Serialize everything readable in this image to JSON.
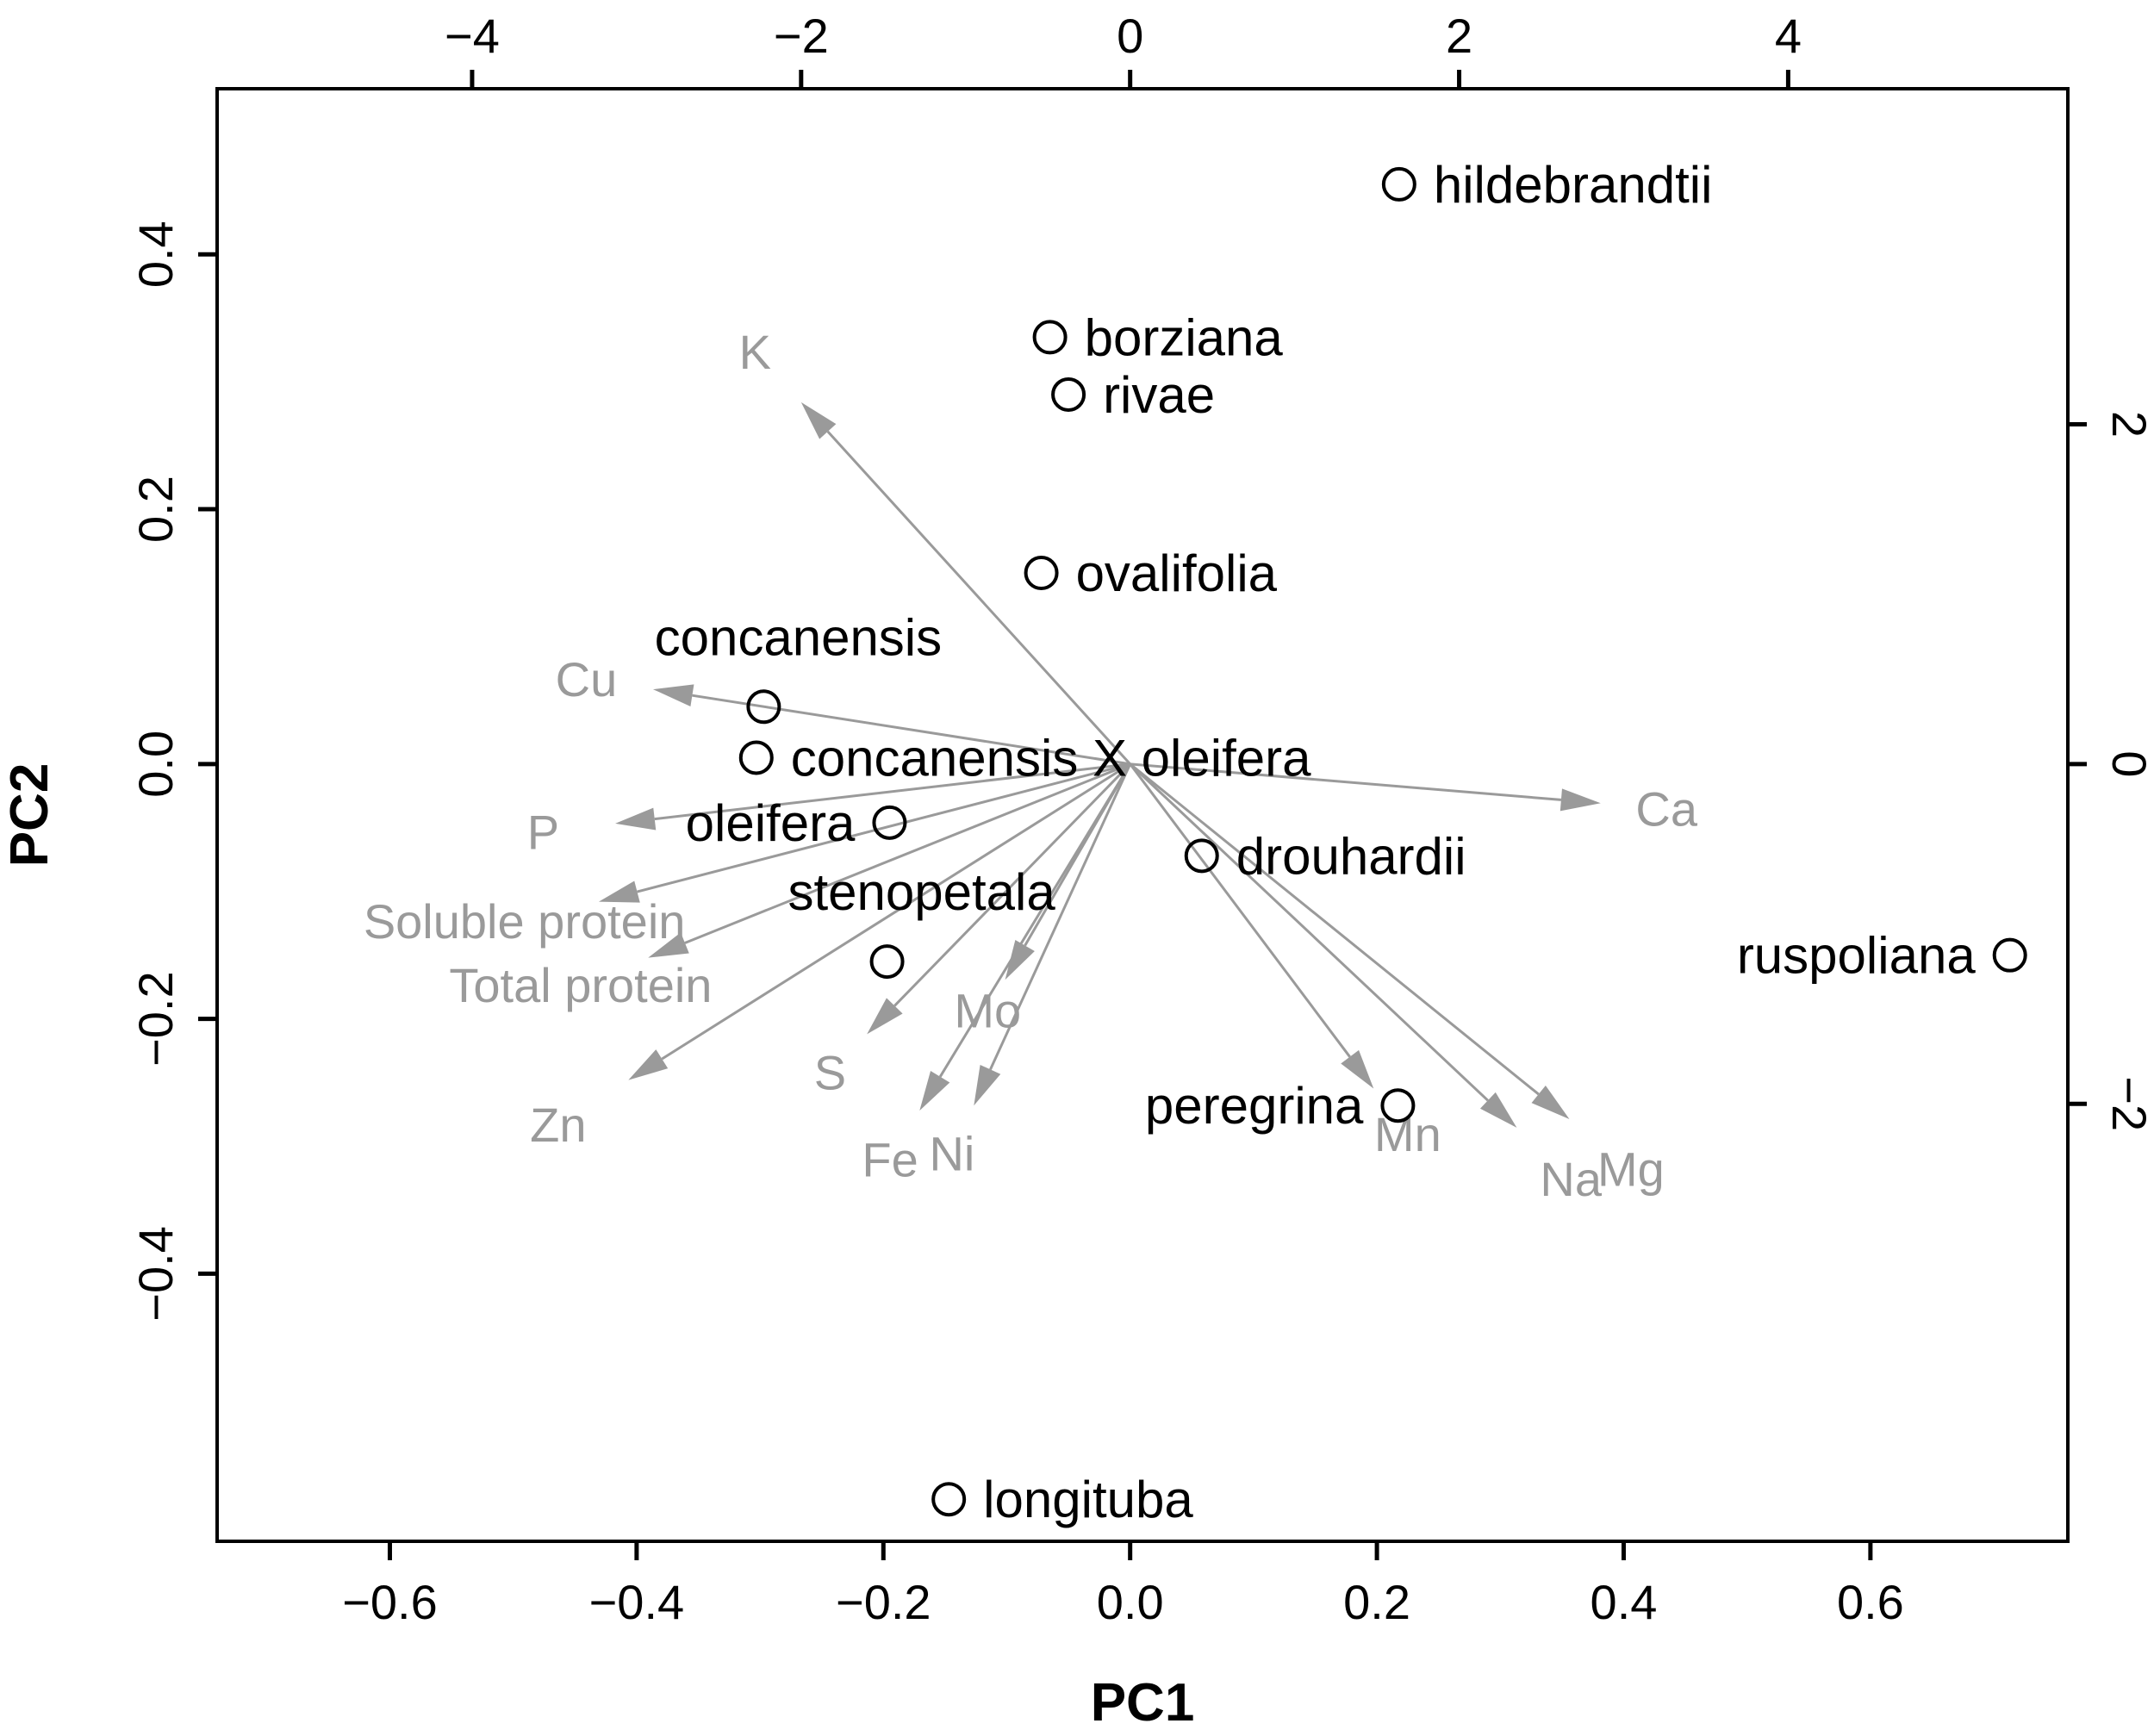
{
  "chart_data": {
    "type": "scatter",
    "subtype": "biplot",
    "xlabel": "PC1",
    "ylabel": "PC2",
    "xlim": [
      -0.74,
      0.76
    ],
    "ylim": [
      -0.61,
      0.53
    ],
    "x_ticks": [
      "−0.6",
      "−0.4",
      "−0.2",
      "0.0",
      "0.2",
      "0.4",
      "0.6"
    ],
    "x_tick_values": [
      -0.6,
      -0.4,
      -0.2,
      0.0,
      0.2,
      0.4,
      0.6
    ],
    "y_ticks": [
      "−0.4",
      "−0.2",
      "0.0",
      "0.2",
      "0.4"
    ],
    "y_tick_values": [
      -0.4,
      -0.2,
      0.0,
      0.2,
      0.4
    ],
    "top_ticks": [
      "−4",
      "−2",
      "0",
      "2",
      "4"
    ],
    "top_tick_values": [
      -4,
      -2,
      0,
      2,
      4
    ],
    "right_ticks": [
      "−2",
      "0",
      "2"
    ],
    "right_tick_values": [
      -2,
      0,
      2
    ],
    "loading_scale": 7.5,
    "observations": [
      {
        "label": "hildebrandtii",
        "x": 0.218,
        "y": 0.455
      },
      {
        "label": "borziana",
        "x": -0.065,
        "y": 0.335
      },
      {
        "label": "rivae",
        "x": -0.05,
        "y": 0.29
      },
      {
        "label": "ovalifolia",
        "x": -0.072,
        "y": 0.15
      },
      {
        "label": "concanensis",
        "x": -0.297,
        "y": 0.045
      },
      {
        "label": "concanensis X oleifera",
        "x": -0.303,
        "y": 0.005
      },
      {
        "label": "oleifera",
        "x": -0.195,
        "y": -0.046
      },
      {
        "label": "drouhardii",
        "x": 0.058,
        "y": -0.072
      },
      {
        "label": "stenopetala",
        "x": -0.197,
        "y": -0.155
      },
      {
        "label": "ruspoliana",
        "x": 0.713,
        "y": -0.15
      },
      {
        "label": "peregrina",
        "x": 0.217,
        "y": -0.268
      },
      {
        "label": "longituba",
        "x": -0.147,
        "y": -0.577
      }
    ],
    "loadings": [
      {
        "label": "K",
        "x": -2.0,
        "y": 2.13
      },
      {
        "label": "Cu",
        "x": -2.9,
        "y": 0.44
      },
      {
        "label": "P",
        "x": -3.13,
        "y": -0.35
      },
      {
        "label": "Soluble protein",
        "x": -3.23,
        "y": -0.81
      },
      {
        "label": "Total protein",
        "x": -2.93,
        "y": -1.14
      },
      {
        "label": "Zn",
        "x": -3.05,
        "y": -1.86
      },
      {
        "label": "S",
        "x": -1.6,
        "y": -1.59
      },
      {
        "label": "Fe",
        "x": -1.28,
        "y": -2.04
      },
      {
        "label": "Ni",
        "x": -0.95,
        "y": -2.01
      },
      {
        "label": "Mo",
        "x": -0.76,
        "y": -1.27
      },
      {
        "label": "Ca",
        "x": 2.86,
        "y": -0.23
      },
      {
        "label": "Mn",
        "x": 1.48,
        "y": -1.91
      },
      {
        "label": "Na",
        "x": 2.35,
        "y": -2.14
      },
      {
        "label": "Mg",
        "x": 2.67,
        "y": -2.09
      }
    ]
  }
}
